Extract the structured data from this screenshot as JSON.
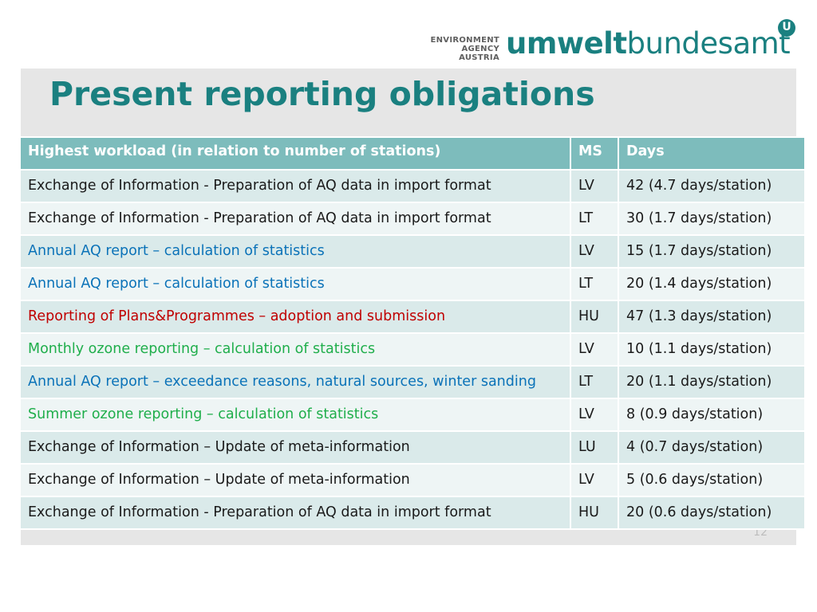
{
  "logo": {
    "line1": "ENVIRONMENT",
    "line2": "AGENCY AUSTRIA",
    "word_bold": "umwelt",
    "word_regular": "bundesamt",
    "mark": "U"
  },
  "title": "Present reporting obligations",
  "slide_number": "12",
  "table": {
    "headers": [
      "Highest workload (in relation to number of stations)",
      "MS",
      "Days"
    ],
    "rows": [
      {
        "task": "Exchange of Information - Preparation of AQ data in import format",
        "ms": "LV",
        "days": "42 (4.7 days/station)",
        "color": "#1a1a1a"
      },
      {
        "task": "Exchange of Information - Preparation of AQ data in import format",
        "ms": "LT",
        "days": "30 (1.7 days/station)",
        "color": "#1a1a1a"
      },
      {
        "task": "Annual AQ report – calculation of statistics",
        "ms": "LV",
        "days": "15 (1.7 days/station)",
        "color": "#0a72b8"
      },
      {
        "task": "Annual AQ report – calculation of statistics",
        "ms": "LT",
        "days": "20 (1.4 days/station)",
        "color": "#0a72b8"
      },
      {
        "task": "Reporting of Plans&Programmes – adoption and submission",
        "ms": "HU",
        "days": "47 (1.3 days/station)",
        "color": "#c00000"
      },
      {
        "task": "Monthly ozone reporting – calculation of statistics",
        "ms": "LV",
        "days": "10 (1.1 days/station)",
        "color": "#1fae4b"
      },
      {
        "task": "Annual AQ report – exceedance reasons, natural sources, winter sanding",
        "ms": "LT",
        "days": "20 (1.1 days/station)",
        "color": "#0a72b8"
      },
      {
        "task": "Summer ozone reporting – calculation of statistics",
        "ms": "LV",
        "days": "8 (0.9 days/station)",
        "color": "#1fae4b"
      },
      {
        "task": "Exchange of Information – Update of meta-information",
        "ms": "LU",
        "days": "4 (0.7 days/station)",
        "color": "#1a1a1a"
      },
      {
        "task": "Exchange of Information – Update of meta-information",
        "ms": "LV",
        "days": "5 (0.6 days/station)",
        "color": "#1a1a1a"
      },
      {
        "task": "Exchange of Information - Preparation of AQ data in import format",
        "ms": "HU",
        "days": "20 (0.6 days/station)",
        "color": "#1a1a1a"
      }
    ]
  },
  "colors": {
    "accent": "#1a8080",
    "header_bg": "#7dbcbc",
    "row_odd": "#daeaea",
    "row_even": "#eef5f5",
    "panel": "#e6e6e6"
  }
}
